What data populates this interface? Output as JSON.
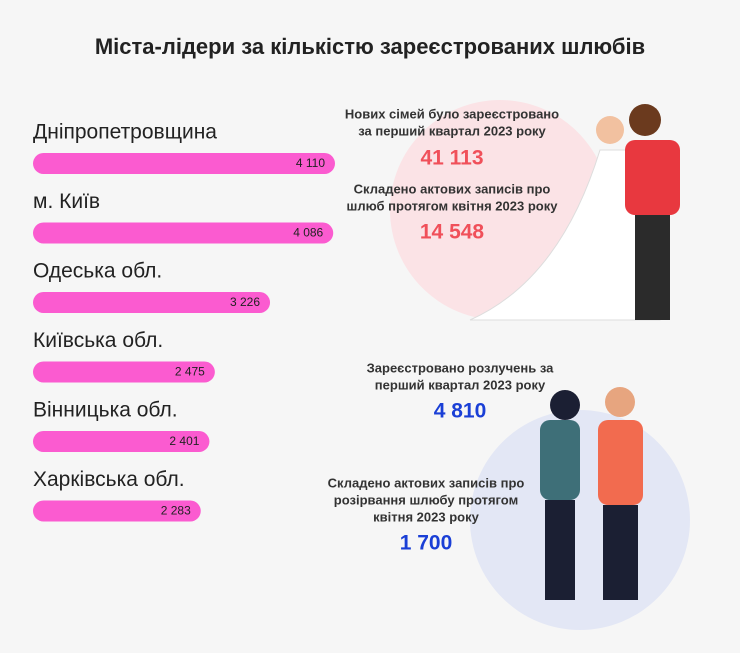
{
  "chart_data": {
    "type": "bar",
    "orientation": "horizontal",
    "title": "Міста-лідери за кількістю зареєстрованих шлюбів",
    "categories": [
      "Дніпропетровщина",
      "м. Київ",
      "Одеська обл.",
      "Київська обл.",
      "Вінницька обл.",
      "Харківська обл."
    ],
    "values": [
      4110,
      4086,
      3226,
      2475,
      2401,
      2283
    ],
    "value_labels": [
      "4 110",
      "4 086",
      "3 226",
      "2 475",
      "2 401",
      "2 283"
    ],
    "color": "#fb5bd0"
  },
  "stats": [
    {
      "lines": [
        "Нових сімей було зареєстровано",
        "за перший квартал 2023 року"
      ],
      "value": 41113,
      "label": "41 113",
      "color": "#f0505a"
    },
    {
      "lines": [
        "Складено актових записів про",
        "шлюб протягом квітня 2023 року"
      ],
      "value": 14548,
      "label": "14 548",
      "color": "#f0505a"
    },
    {
      "lines": [
        "Зареєстровано розлучень за",
        "перший квартал 2023 року"
      ],
      "value": 4810,
      "label": "4 810",
      "color": "#1a3fd6"
    },
    {
      "lines": [
        "Складено актових записів про",
        "розірвання шлюбу протягом",
        "квітня 2023 року"
      ],
      "value": 1700,
      "label": "1 700",
      "color": "#1a3fd6"
    }
  ]
}
